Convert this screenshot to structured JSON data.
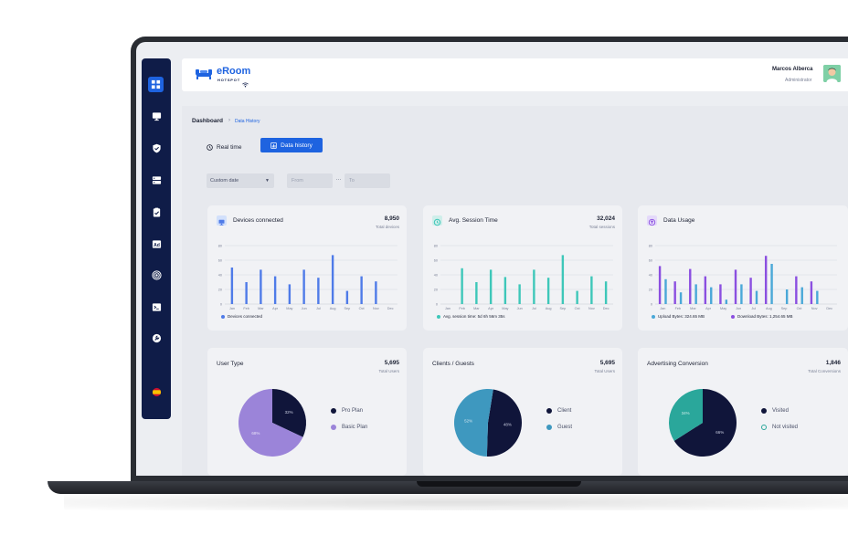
{
  "header": {
    "logo_text": "eRoom",
    "logo_sub": "HOTSPOT",
    "user_name": "Marcos Alberca",
    "user_role": "Administrator"
  },
  "breadcrumb": {
    "main": "Dashboard",
    "sub": "Data History"
  },
  "tabs": [
    {
      "label": "Real time",
      "active": false
    },
    {
      "label": "Data history",
      "active": true
    }
  ],
  "filters": {
    "date_range": "Custom date",
    "from_placeholder": "From",
    "to_placeholder": "To"
  },
  "sidebar": {
    "items": [
      {
        "icon": "dashboard-grid-icon",
        "active": true
      },
      {
        "icon": "monitor-icon",
        "active": false
      },
      {
        "icon": "shield-icon",
        "active": false
      },
      {
        "icon": "server-icon",
        "active": false
      },
      {
        "icon": "clipboard-check-icon",
        "active": false
      },
      {
        "icon": "ad-icon",
        "active": false
      },
      {
        "icon": "broadcast-icon",
        "active": false
      },
      {
        "icon": "terminal-icon",
        "active": false
      },
      {
        "icon": "wrench-icon",
        "active": false
      },
      {
        "icon": "spain-flag-icon",
        "active": false
      }
    ]
  },
  "colors": {
    "accent": "#1e63e0",
    "sidebar": "#0f1c48",
    "devices": "#4f7be8",
    "session": "#3ec7b9",
    "upload": "#4aa8d8",
    "download": "#8b4fe0",
    "pro_plan": "#10153a",
    "basic_plan": "#9b84d9",
    "client": "#10153a",
    "guest": "#3e98bf",
    "visited": "#10153a",
    "not_visited": "#2aa79b"
  },
  "cards": {
    "devices": {
      "title": "Devices connected",
      "value": "8,950",
      "sub": "Total devices",
      "legend": "Devices connected"
    },
    "session": {
      "title": "Avg. Session Time",
      "value": "32,024",
      "sub": "Total sessions",
      "legend": "Avg. session time: 5d 6h 56m 35s"
    },
    "usage": {
      "title": "Data Usage",
      "legend_upload": "Upload Bytes: 324.65 MB",
      "legend_download": "Download Bytes: 1,254.65 MB"
    },
    "user_type": {
      "title": "User Type",
      "value": "5,695",
      "sub": "Total Users"
    },
    "clients": {
      "title": "Clients / Guests",
      "value": "5,695",
      "sub": "Total Users"
    },
    "advertising": {
      "title": "Advertising Conversion",
      "value": "1,846",
      "sub": "Total Conversions"
    }
  },
  "chart_data": [
    {
      "type": "bar",
      "categories": [
        "Jan",
        "Feb",
        "Mar",
        "Apr",
        "May",
        "Jun",
        "Jul",
        "Aug",
        "Sep",
        "Oct",
        "Nov",
        "Dec"
      ],
      "series": [
        {
          "name": "Devices connected",
          "values": [
            50,
            30,
            47,
            38,
            27,
            47,
            36,
            67,
            18,
            38,
            31,
            0
          ]
        }
      ],
      "ylim": [
        0,
        80
      ],
      "yticks": [
        20,
        40,
        60,
        80
      ]
    },
    {
      "type": "bar",
      "categories": [
        "Jan",
        "Feb",
        "Mar",
        "Apr",
        "May",
        "Jun",
        "Jul",
        "Aug",
        "Sep",
        "Oct",
        "Nov",
        "Dec"
      ],
      "series": [
        {
          "name": "Avg. session time",
          "values": [
            0,
            49,
            30,
            47,
            37,
            27,
            47,
            36,
            67,
            18,
            38,
            31
          ]
        }
      ],
      "ylim": [
        0,
        80
      ],
      "yticks": [
        20,
        40,
        60,
        80
      ]
    },
    {
      "type": "bar",
      "categories": [
        "Jan",
        "Feb",
        "Mar",
        "Apr",
        "May",
        "Jun",
        "Jul",
        "Aug",
        "Sep",
        "Oct",
        "Nov",
        "Dec"
      ],
      "series": [
        {
          "name": "Download Bytes",
          "values": [
            52,
            31,
            48,
            38,
            27,
            47,
            36,
            66,
            0,
            38,
            31,
            0
          ]
        },
        {
          "name": "Upload Bytes",
          "values": [
            34,
            16,
            27,
            23,
            6,
            27,
            18,
            55,
            20,
            23,
            18,
            0
          ]
        }
      ],
      "ylim": [
        0,
        80
      ],
      "yticks": [
        20,
        40,
        60,
        80
      ]
    },
    {
      "type": "pie",
      "labels": [
        "Pro Plan",
        "Basic Plan"
      ],
      "values": [
        32,
        68
      ],
      "data_labels": [
        "32%",
        "68%"
      ]
    },
    {
      "type": "pie",
      "labels": [
        "Client",
        "Guest"
      ],
      "values": [
        48,
        52
      ],
      "data_labels": [
        "48%",
        "52%"
      ]
    },
    {
      "type": "pie",
      "labels": [
        "Visited",
        "Not visited"
      ],
      "values": [
        66,
        34
      ],
      "data_labels": [
        "66%",
        "34%"
      ]
    }
  ]
}
